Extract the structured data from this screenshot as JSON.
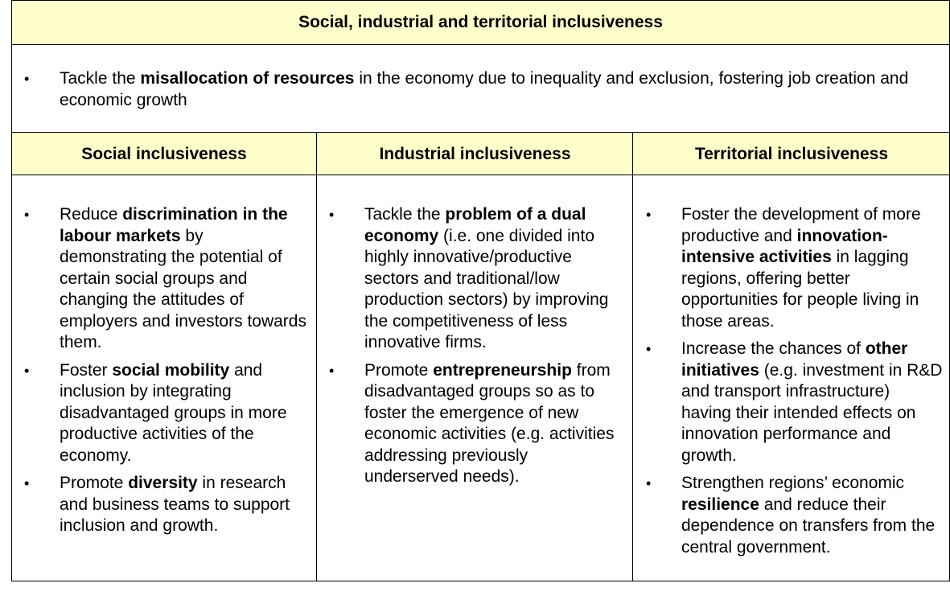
{
  "title": "Social, industrial and territorial inclusiveness",
  "overview": [
    {
      "parts": [
        "Tackle the ",
        {
          "b": "misallocation of resources"
        },
        " in the economy due to inequality and exclusion, fostering job creation and economic growth"
      ]
    }
  ],
  "columns": [
    {
      "header": "Social inclusiveness",
      "items": [
        {
          "parts": [
            "Reduce ",
            {
              "b": "discrimination in the labour markets"
            },
            " by demonstrating the potential of certain social groups and changing the attitudes of employers and investors towards them."
          ]
        },
        {
          "parts": [
            "Foster ",
            {
              "b": "social mobility"
            },
            " and inclusion by integrating disadvantaged groups in more productive activities of the economy."
          ]
        },
        {
          "parts": [
            "Promote ",
            {
              "b": "diversity"
            },
            " in research and business teams to support inclusion and growth."
          ]
        }
      ]
    },
    {
      "header": "Industrial inclusiveness",
      "items": [
        {
          "parts": [
            "Tackle the ",
            {
              "b": "problem of a dual economy"
            },
            " (i.e. one divided into highly innovative/productive sectors and traditional/low production sectors) by improving the competitiveness of less innovative firms."
          ]
        },
        {
          "parts": [
            "Promote ",
            {
              "b": "entrepreneurship"
            },
            " from disadvantaged groups so as to foster the emergence of new economic activities (e.g. activities addressing previously underserved needs)."
          ]
        }
      ]
    },
    {
      "header": "Territorial inclusiveness",
      "items": [
        {
          "parts": [
            "Foster the development of more productive and ",
            {
              "b": "innovation-intensive activities"
            },
            " in lagging regions, offering better opportunities for people living in those areas."
          ]
        },
        {
          "parts": [
            "Increase the chances of  ",
            {
              "b": "other initiatives"
            },
            " (e.g. investment in R&D and transport infrastructure) having their intended effects on innovation performance and growth."
          ]
        },
        {
          "parts": [
            "Strengthen regions’ economic ",
            {
              "b": "resilience"
            },
            " and reduce their dependence on transfers from the central government."
          ]
        }
      ]
    }
  ],
  "colors": {
    "header_bg": "#ffffcc",
    "border": "#000000"
  }
}
